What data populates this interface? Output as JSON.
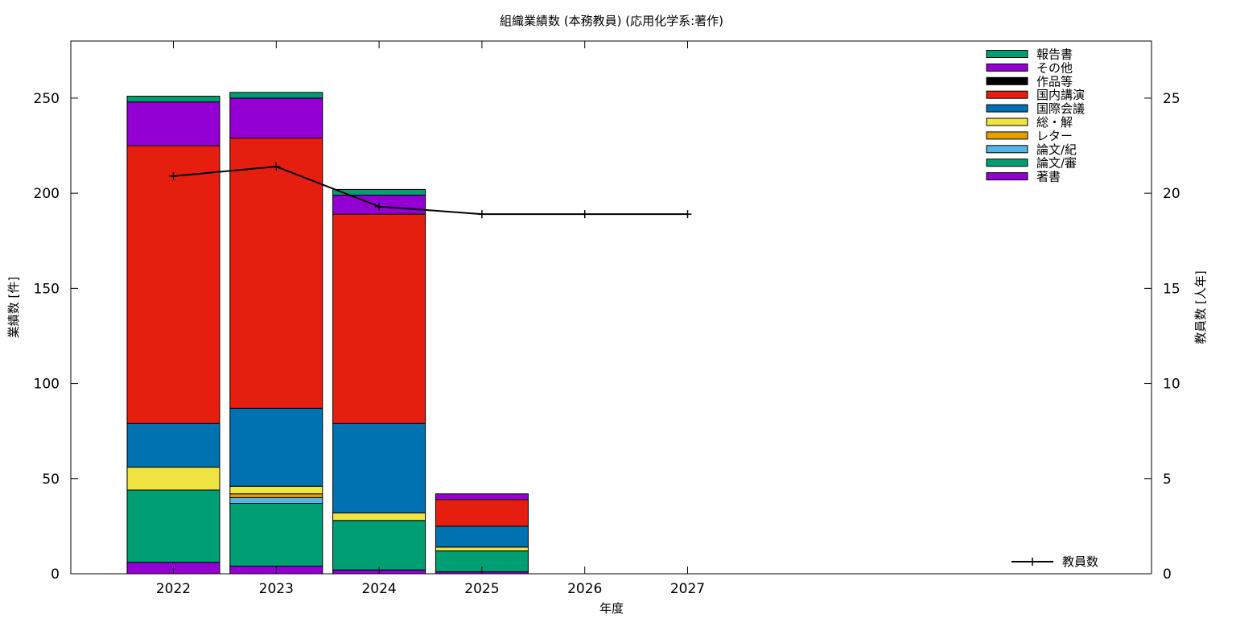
{
  "chart_data": {
    "type": "bar",
    "stacked": true,
    "title": "組織業績数 (本務教員) (応用化学系:著作)",
    "xlabel": "年度",
    "ylabel": "業績数 [件]",
    "y2label": "教員数 [人年]",
    "categories": [
      "2022",
      "2023",
      "2024",
      "2025",
      "2026",
      "2027"
    ],
    "ylim": [
      0,
      280
    ],
    "y2lim": [
      0,
      28
    ],
    "yticks": [
      0,
      50,
      100,
      150,
      200,
      250
    ],
    "y2ticks": [
      0,
      5,
      10,
      15,
      20,
      25
    ],
    "grid": false,
    "legend_position": "top-right",
    "series": [
      {
        "name": "著書",
        "color": "#9400d3",
        "values": [
          6,
          4,
          2,
          1,
          0,
          0
        ]
      },
      {
        "name": "論文/審",
        "color": "#009e73",
        "values": [
          38,
          33,
          26,
          11,
          0,
          0
        ]
      },
      {
        "name": "論文/紀",
        "color": "#56b4e9",
        "values": [
          0,
          3,
          0,
          0,
          0,
          0
        ]
      },
      {
        "name": "レター",
        "color": "#e69f00",
        "values": [
          0,
          2,
          0,
          0,
          0,
          0
        ]
      },
      {
        "name": "総・解",
        "color": "#f0e442",
        "values": [
          12,
          4,
          4,
          2,
          0,
          0
        ]
      },
      {
        "name": "国際会議",
        "color": "#0072b2",
        "values": [
          23,
          41,
          47,
          11,
          0,
          0
        ]
      },
      {
        "name": "国内講演",
        "color": "#e51e10",
        "values": [
          146,
          142,
          110,
          14,
          0,
          0
        ]
      },
      {
        "name": "作品等",
        "color": "#000000",
        "values": [
          0,
          0,
          0,
          0,
          0,
          0
        ]
      },
      {
        "name": "その他",
        "color": "#9400d3",
        "values": [
          23,
          21,
          10,
          3,
          0,
          0
        ]
      },
      {
        "name": "報告書",
        "color": "#009e73",
        "values": [
          3,
          3,
          3,
          0,
          0,
          0
        ]
      }
    ],
    "line_series": {
      "name": "教員数",
      "axis": "y2",
      "color": "#000000",
      "values": [
        20.9,
        21.4,
        19.3,
        18.9,
        18.9,
        18.9
      ]
    }
  }
}
